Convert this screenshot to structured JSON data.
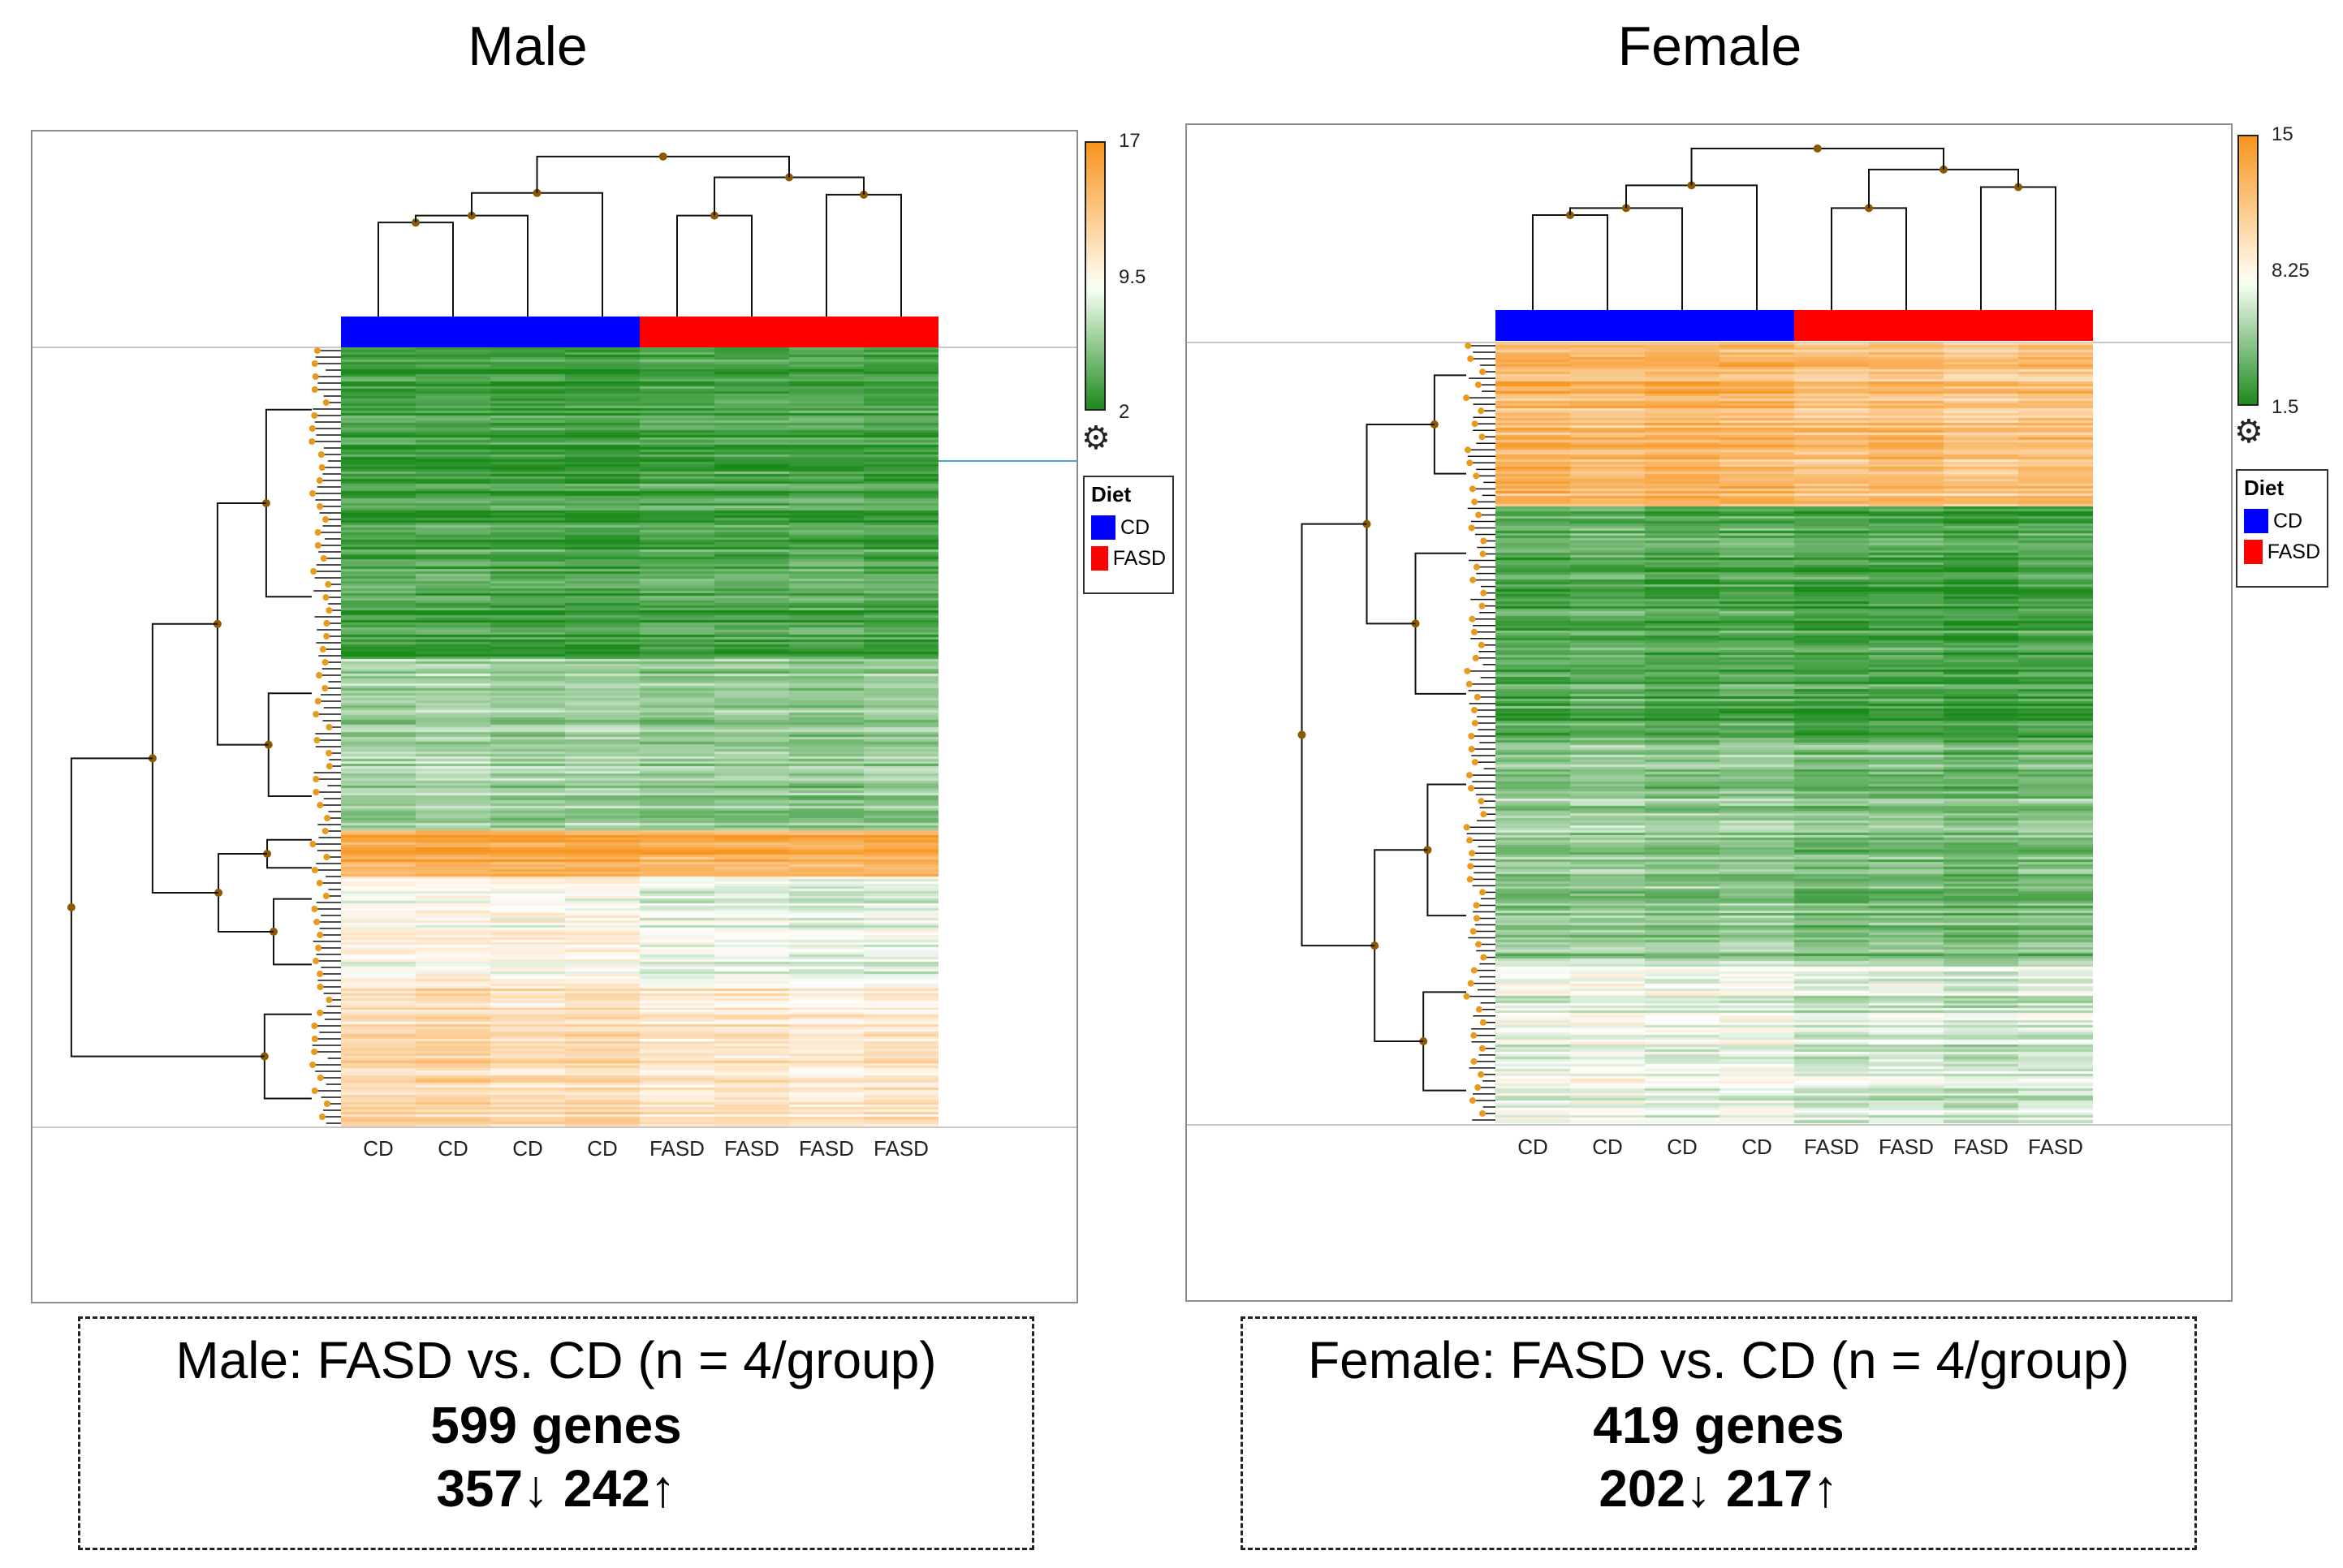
{
  "panels": {
    "male": {
      "title": "Male",
      "scale": {
        "max": "17",
        "mid": "9.5",
        "min": "2"
      },
      "legend": {
        "title": "Diet",
        "items": [
          {
            "label": "CD",
            "color": "#0000ff"
          },
          {
            "label": "FASD",
            "color": "#ff0000"
          }
        ]
      },
      "columns": [
        "CD",
        "CD",
        "CD",
        "CD",
        "FASD",
        "FASD",
        "FASD",
        "FASD"
      ],
      "summary": {
        "comparison": "Male: FASD vs. CD (n = 4/group)",
        "genes": "599 genes",
        "direction": "357↓ 242↑"
      }
    },
    "female": {
      "title": "Female",
      "scale": {
        "max": "15",
        "mid": "8.25",
        "min": "1.5"
      },
      "legend": {
        "title": "Diet",
        "items": [
          {
            "label": "CD",
            "color": "#0000ff"
          },
          {
            "label": "FASD",
            "color": "#ff0000"
          }
        ]
      },
      "columns": [
        "CD",
        "CD",
        "CD",
        "CD",
        "FASD",
        "FASD",
        "FASD",
        "FASD"
      ],
      "summary": {
        "comparison": "Female: FASD vs. CD (n = 4/group)",
        "genes": "419 genes",
        "direction": "202↓ 217↑"
      }
    }
  },
  "colors": {
    "high": "#f7941d",
    "mid": "#ffffff",
    "low": "#1a8a1a",
    "cd": "#0000ff",
    "fasd": "#ff0000",
    "node": "#8b5a00"
  },
  "chart_data": [
    {
      "type": "heatmap",
      "title": "Male",
      "columns": [
        "CD",
        "CD",
        "CD",
        "CD",
        "FASD",
        "FASD",
        "FASD",
        "FASD"
      ],
      "column_groups": [
        "CD",
        "CD",
        "CD",
        "CD",
        "FASD",
        "FASD",
        "FASD",
        "FASD"
      ],
      "colorbar": {
        "min": 2,
        "mid": 9.5,
        "max": 17
      },
      "legend": {
        "title": "Diet",
        "entries": [
          "CD",
          "FASD"
        ]
      },
      "n_genes": 599,
      "down": 357,
      "up": 242,
      "blocks": [
        {
          "fraction": 0.4,
          "level": [
            3.5,
            3.6,
            3.4,
            3.3,
            3.8,
            3.7,
            3.9,
            3.6
          ]
        },
        {
          "fraction": 0.22,
          "level": [
            6.5,
            6.8,
            6.3,
            6.6,
            6.0,
            6.2,
            5.8,
            6.1
          ]
        },
        {
          "fraction": 0.06,
          "level": [
            15.5,
            15.8,
            15.4,
            15.6,
            15.2,
            15.3,
            15.0,
            15.4
          ]
        },
        {
          "fraction": 0.14,
          "level": [
            9.8,
            10.0,
            9.9,
            9.7,
            8.6,
            8.9,
            8.2,
            8.4
          ]
        },
        {
          "fraction": 0.18,
          "level": [
            12.0,
            12.4,
            11.8,
            12.1,
            11.2,
            11.5,
            10.9,
            11.3
          ]
        }
      ]
    },
    {
      "type": "heatmap",
      "title": "Female",
      "columns": [
        "CD",
        "CD",
        "CD",
        "CD",
        "FASD",
        "FASD",
        "FASD",
        "FASD"
      ],
      "column_groups": [
        "CD",
        "CD",
        "CD",
        "CD",
        "FASD",
        "FASD",
        "FASD",
        "FASD"
      ],
      "colorbar": {
        "min": 1.5,
        "mid": 8.25,
        "max": 15
      },
      "legend": {
        "title": "Diet",
        "entries": [
          "CD",
          "FASD"
        ]
      },
      "n_genes": 419,
      "down": 202,
      "up": 217,
      "blocks": [
        {
          "fraction": 0.21,
          "level": [
            12.8,
            12.5,
            12.9,
            12.6,
            12.0,
            12.3,
            11.8,
            12.1
          ]
        },
        {
          "fraction": 0.3,
          "level": [
            3.2,
            3.5,
            3.0,
            3.3,
            2.8,
            3.0,
            2.6,
            2.9
          ]
        },
        {
          "fraction": 0.28,
          "level": [
            5.0,
            5.3,
            4.9,
            5.2,
            4.4,
            4.6,
            4.2,
            4.5
          ]
        },
        {
          "fraction": 0.21,
          "level": [
            7.6,
            7.9,
            7.4,
            7.7,
            6.8,
            7.0,
            6.5,
            6.9
          ]
        }
      ]
    }
  ]
}
